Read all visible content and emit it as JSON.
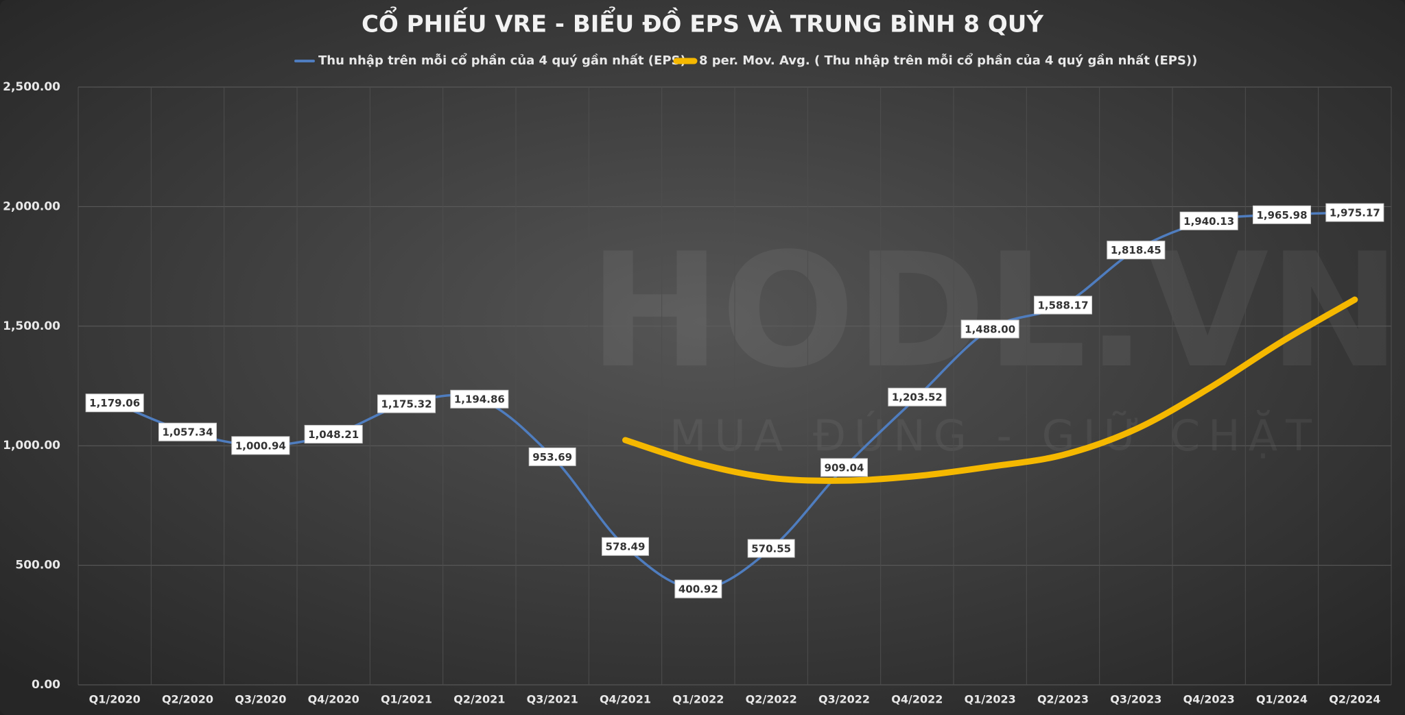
{
  "chart_data": {
    "type": "line",
    "title": "CỔ PHIẾU VRE - BIỂU ĐỒ EPS VÀ TRUNG BÌNH 8 QUÝ",
    "watermark": [
      "HODL.VN",
      "MUA ĐÚNG - GIỮ CHẶT"
    ],
    "categories": [
      "Q1/2020",
      "Q2/2020",
      "Q3/2020",
      "Q4/2020",
      "Q1/2021",
      "Q2/2021",
      "Q3/2021",
      "Q4/2021",
      "Q1/2022",
      "Q2/2022",
      "Q3/2022",
      "Q4/2022",
      "Q1/2023",
      "Q2/2023",
      "Q3/2023",
      "Q4/2023",
      "Q1/2024",
      "Q2/2024"
    ],
    "series": [
      {
        "name": "Thu nhập trên mỗi cổ phần của 4 quý gần nhất (EPS)",
        "color": "#4f7dbf",
        "values": [
          1179.06,
          1057.34,
          1000.94,
          1048.21,
          1175.32,
          1194.86,
          953.69,
          578.49,
          400.92,
          570.55,
          909.04,
          1203.52,
          1488.0,
          1588.17,
          1818.45,
          1940.13,
          1965.98,
          1975.17
        ],
        "value_labels": [
          "1,179.06",
          "1,057.34",
          "1,000.94",
          "1,048.21",
          "1,175.32",
          "1,194.86",
          "953.69",
          "578.49",
          "400.92",
          "570.55",
          "909.04",
          "1,203.52",
          "1,488.00",
          "1,588.17",
          "1,818.45",
          "1,940.13",
          "1,965.98",
          "1,975.17"
        ]
      },
      {
        "name": "8 per. Mov. Avg. ( Thu nhập trên mỗi cổ phần của 4 quý gần nhất (EPS))",
        "color": "#f5b800",
        "values": [
          null,
          null,
          null,
          null,
          null,
          null,
          null,
          1023.49,
          926.22,
          865.37,
          853.89,
          873.3,
          912.38,
          961.55,
          1069.64,
          1239.85,
          1435.48,
          1611.06
        ]
      }
    ],
    "ylim": [
      0,
      2500
    ],
    "yticks": [
      {
        "value": 0,
        "label": "0.00"
      },
      {
        "value": 500,
        "label": "500.00"
      },
      {
        "value": 1000,
        "label": "1,000.00"
      },
      {
        "value": 1500,
        "label": "1,500.00"
      },
      {
        "value": 2000,
        "label": "2,000.00"
      },
      {
        "value": 2500,
        "label": "2,500.00"
      }
    ],
    "grid": true
  }
}
